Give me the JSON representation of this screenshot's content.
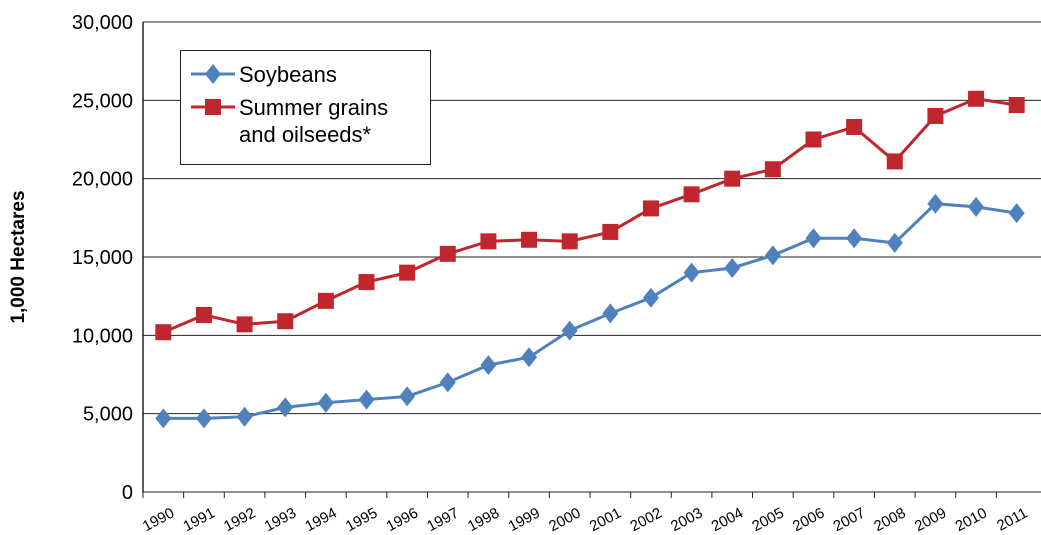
{
  "chart_data": {
    "type": "line",
    "y_label": "1,000 Hectares",
    "categories": [
      "1990",
      "1991",
      "1992",
      "1993",
      "1994",
      "1995",
      "1996",
      "1997",
      "1998",
      "1999",
      "2000",
      "2001",
      "2002",
      "2003",
      "2004",
      "2005",
      "2006",
      "2007",
      "2008",
      "2009",
      "2010",
      "2011"
    ],
    "series": [
      {
        "name": "Soybeans",
        "color": "#4f81bd",
        "marker": "diamond",
        "values": [
          4700,
          4700,
          4800,
          5400,
          5700,
          5900,
          6100,
          7000,
          8100,
          8600,
          10300,
          11400,
          12400,
          14000,
          14300,
          15100,
          16200,
          16200,
          15900,
          18400,
          18200,
          17800
        ]
      },
      {
        "name": "Summer grains and oilseeds*",
        "color": "#c0262d",
        "marker": "square",
        "values": [
          10200,
          11300,
          10700,
          10900,
          12200,
          13400,
          14000,
          15200,
          16000,
          16100,
          16000,
          16600,
          18100,
          19000,
          20000,
          20600,
          22500,
          23300,
          21100,
          24000,
          25100,
          24700
        ]
      }
    ],
    "ylim": [
      0,
      30000
    ],
    "yticks": [
      0,
      {
        "value": 5000,
        "label": "5,000"
      },
      {
        "value": 10000,
        "label": "10,000"
      },
      {
        "value": 15000,
        "label": "15,000"
      },
      {
        "value": 20000,
        "label": "20,000"
      },
      {
        "value": 25000,
        "label": "25,000"
      },
      {
        "value": 30000,
        "label": "30,000"
      }
    ],
    "grid": true
  }
}
